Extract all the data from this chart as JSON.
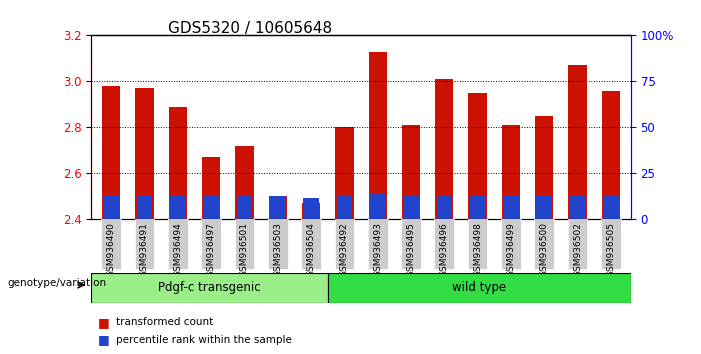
{
  "title": "GDS5320 / 10605648",
  "categories": [
    "GSM936490",
    "GSM936491",
    "GSM936494",
    "GSM936497",
    "GSM936501",
    "GSM936503",
    "GSM936504",
    "GSM936492",
    "GSM936493",
    "GSM936495",
    "GSM936496",
    "GSM936498",
    "GSM936499",
    "GSM936500",
    "GSM936502",
    "GSM936505"
  ],
  "red_values": [
    2.98,
    2.97,
    2.89,
    2.67,
    2.72,
    2.5,
    2.47,
    2.8,
    3.13,
    2.81,
    3.01,
    2.95,
    2.81,
    2.85,
    3.07,
    2.96
  ],
  "blue_values": [
    0.105,
    0.105,
    0.105,
    0.1,
    0.105,
    0.1,
    0.095,
    0.105,
    0.115,
    0.105,
    0.105,
    0.105,
    0.1,
    0.105,
    0.105,
    0.105
  ],
  "baseline": 2.4,
  "ylim_left": [
    2.4,
    3.2
  ],
  "ylim_right": [
    0,
    100
  ],
  "right_ticks": [
    0,
    25,
    50,
    75,
    100
  ],
  "right_tick_labels": [
    "0",
    "25",
    "50",
    "75",
    "100%"
  ],
  "left_ticks": [
    2.4,
    2.6,
    2.8,
    3.0,
    3.2
  ],
  "group1_label": "Pdgf-c transgenic",
  "group2_label": "wild type",
  "group1_count": 7,
  "group2_count": 9,
  "genotype_label": "genotype/variation",
  "legend_red": "transformed count",
  "legend_blue": "percentile rank within the sample",
  "bar_color_red": "#cc1100",
  "bar_color_blue": "#2244cc",
  "group1_bg": "#99ee88",
  "group2_bg": "#33dd44",
  "xticklabel_bg": "#cccccc",
  "title_fontsize": 11,
  "tick_fontsize": 8.5,
  "bar_width": 0.55
}
